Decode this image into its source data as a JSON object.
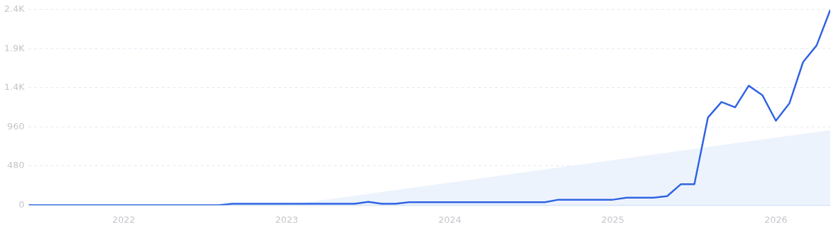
{
  "chart_data": {
    "type": "line",
    "x": [
      "2021-06",
      "2021-07",
      "2021-08",
      "2021-09",
      "2021-10",
      "2021-11",
      "2021-12",
      "2022-01",
      "2022-02",
      "2022-03",
      "2022-04",
      "2022-05",
      "2022-06",
      "2022-07",
      "2022-08",
      "2022-09",
      "2022-10",
      "2022-11",
      "2022-12",
      "2023-01",
      "2023-02",
      "2023-03",
      "2023-04",
      "2023-05",
      "2023-06",
      "2023-07",
      "2023-08",
      "2023-09",
      "2023-10",
      "2023-11",
      "2023-12",
      "2024-01",
      "2024-02",
      "2024-03",
      "2024-04",
      "2024-05",
      "2024-06",
      "2024-07",
      "2024-08",
      "2024-09",
      "2024-10",
      "2024-11",
      "2024-12",
      "2025-01",
      "2025-02",
      "2025-03",
      "2025-04",
      "2025-05",
      "2025-06",
      "2025-07",
      "2025-08",
      "2025-09",
      "2025-10",
      "2025-11",
      "2025-12",
      "2026-01",
      "2026-02",
      "2026-03",
      "2026-04",
      "2026-05"
    ],
    "series": [
      {
        "type": "area",
        "x": [
          "2023-01",
          "2026-05"
        ],
        "values": [
          0,
          920
        ],
        "color": "#edf3fd"
      },
      {
        "color": "#2e62e3",
        "values": [
          0,
          0,
          0,
          0,
          0,
          0,
          0,
          0,
          0,
          0,
          0,
          0,
          0,
          0,
          0,
          17,
          17,
          17,
          17,
          17,
          17,
          17,
          17,
          17,
          17,
          40,
          17,
          17,
          35,
          35,
          35,
          35,
          35,
          35,
          35,
          35,
          35,
          35,
          35,
          66,
          66,
          66,
          66,
          66,
          90,
          90,
          90,
          110,
          255,
          255,
          1075,
          1265,
          1200,
          1465,
          1350,
          1035,
          1250,
          1755,
          1960,
          2395
        ]
      }
    ],
    "xlim": [
      "2021-06",
      "2026-05"
    ],
    "xticks": [
      "2022",
      "2023",
      "2024",
      "2025",
      "2026"
    ],
    "ylim": [
      0,
      2400
    ],
    "yticks": [
      0,
      480,
      960,
      {
        "value": 1440,
        "label": "1.4K"
      },
      {
        "value": 1920,
        "label": "1.9K"
      },
      {
        "value": 2400,
        "label": "2.4K"
      }
    ],
    "grid": "y",
    "legend": false,
    "marker": "none",
    "line_style": "solid"
  }
}
